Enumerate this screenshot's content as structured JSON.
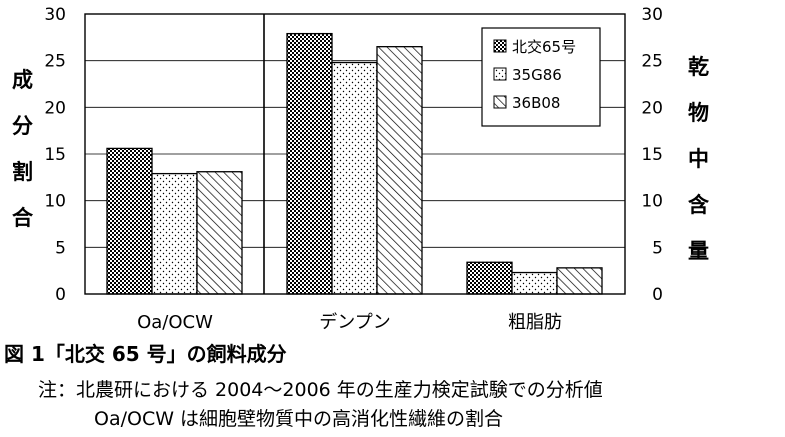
{
  "chart_data": {
    "type": "bar",
    "categories": [
      "Oa/OCW",
      "デンプン",
      "粗脂肪"
    ],
    "series": [
      {
        "name": "北交65号",
        "values": [
          15.6,
          27.9,
          3.4
        ]
      },
      {
        "name": "35G86",
        "values": [
          12.9,
          24.8,
          2.3
        ]
      },
      {
        "name": "36B08",
        "values": [
          13.1,
          26.5,
          2.8
        ]
      }
    ],
    "ylabel_left": "成分割合",
    "ylabel_right": "乾物中含量",
    "ylim": [
      0,
      30
    ],
    "yticks": [
      0,
      5,
      10,
      15,
      20,
      25,
      30
    ],
    "grid": true,
    "legend_position": "top-right"
  },
  "caption": {
    "title": "図 1「北交 65 号」の飼料成分",
    "note1": "注：北農研における 2004～2006 年の生産力検定試験での分析値",
    "note2": "Oa/OCW は細胞壁物質中の高消化性繊維の割合"
  }
}
